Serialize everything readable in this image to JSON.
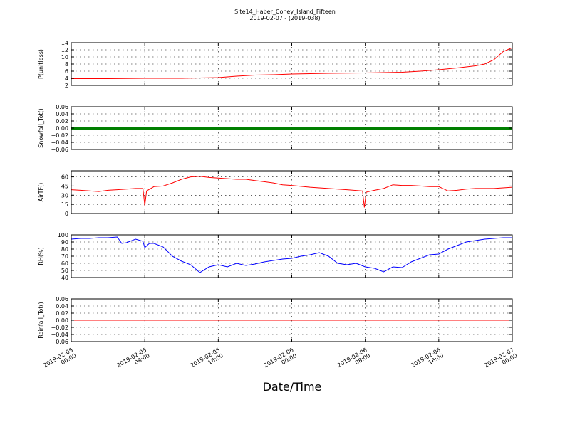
{
  "figure": {
    "title_line1": "Site14_Haber_Coney_Island_Fifteen",
    "title_line2": "2019-02-07 - (2019-038)",
    "xlabel": "Date/Time",
    "x_tick_labels": [
      [
        "2019-02-05",
        "00:00"
      ],
      [
        "2019-02-05",
        "08:00"
      ],
      [
        "2019-02-05",
        "16:00"
      ],
      [
        "2019-02-06",
        "00:00"
      ],
      [
        "2019-02-06",
        "08:00"
      ],
      [
        "2019-02-06",
        "16:00"
      ],
      [
        "2019-02-07",
        "00:00"
      ]
    ]
  },
  "chart_data": [
    {
      "type": "line",
      "ylabel": "P(unitless)",
      "ylim": [
        2,
        14
      ],
      "yticks": [
        2,
        4,
        6,
        8,
        10,
        12,
        14
      ],
      "xlim_hours": [
        0,
        48
      ],
      "grid": true,
      "color": "#ff0000",
      "x": [
        0,
        4,
        8,
        12,
        14,
        16,
        18,
        20,
        22,
        24,
        28,
        32,
        34,
        36,
        38,
        40,
        42,
        44,
        45,
        46,
        47,
        48
      ],
      "values": [
        3.9,
        3.9,
        4.0,
        4.0,
        4.1,
        4.2,
        4.6,
        4.9,
        5.0,
        5.2,
        5.4,
        5.5,
        5.6,
        5.7,
        6.0,
        6.4,
        6.9,
        7.5,
        8.0,
        9.2,
        11.5,
        12.6
      ]
    },
    {
      "type": "line",
      "ylabel": "Snowfall_Tot()",
      "ylim": [
        -0.06,
        0.06
      ],
      "yticks": [
        "0.06",
        "0.04",
        "0.02",
        "0.00",
        "−0.02",
        "−0.04",
        "−0.06"
      ],
      "xlim_hours": [
        0,
        48
      ],
      "grid": true,
      "color": "#007f00",
      "markers": true,
      "x": [
        0,
        48
      ],
      "values": [
        0.0,
        0.0
      ]
    },
    {
      "type": "line",
      "ylabel": "AirTF()",
      "ylim": [
        0,
        70
      ],
      "yticks": [
        0,
        15,
        30,
        45,
        60
      ],
      "xlim_hours": [
        0,
        48
      ],
      "grid": true,
      "color": "#ff0000",
      "x": [
        0,
        1,
        2,
        3,
        4,
        5,
        6,
        7,
        7.8,
        8.0,
        8.2,
        9,
        10,
        11,
        12,
        13,
        14,
        15,
        16,
        17,
        18,
        19,
        20,
        21,
        22,
        23,
        24,
        26,
        28,
        30,
        31.7,
        31.9,
        32.1,
        33,
        34,
        35,
        36,
        37,
        38,
        39,
        40,
        41,
        42,
        43,
        44,
        46,
        48
      ],
      "values": [
        39,
        38,
        37,
        36,
        38,
        39,
        40,
        41,
        41,
        13,
        37,
        44,
        45,
        50,
        56,
        60,
        61,
        59,
        58,
        57,
        56,
        56,
        54,
        52,
        50,
        47,
        46,
        43,
        41,
        39,
        37,
        10,
        35,
        38,
        41,
        47,
        46,
        46,
        45,
        44,
        44,
        37,
        38,
        40,
        41,
        41,
        43
      ]
    },
    {
      "type": "line",
      "ylabel": "RH(%)",
      "ylim": [
        40,
        100
      ],
      "yticks": [
        40,
        50,
        60,
        70,
        80,
        90,
        100
      ],
      "xlim_hours": [
        0,
        48
      ],
      "grid": true,
      "color": "#0000ff",
      "x": [
        0,
        1,
        2,
        3,
        4,
        5,
        5.5,
        6,
        7,
        7.8,
        8,
        8.5,
        9,
        10,
        11,
        12,
        13,
        14,
        15,
        16,
        17,
        18,
        19,
        20,
        21,
        22,
        23,
        24,
        25,
        26,
        27,
        28,
        29,
        30,
        31,
        32,
        33,
        34,
        35,
        36,
        37,
        38,
        39,
        40,
        41,
        42,
        43,
        44,
        45,
        46,
        47,
        48
      ],
      "values": [
        94,
        95,
        95,
        96,
        96,
        97,
        88,
        89,
        94,
        91,
        82,
        88,
        88,
        83,
        70,
        63,
        58,
        47,
        55,
        58,
        55,
        60,
        57,
        59,
        62,
        64,
        66,
        67,
        70,
        72,
        75,
        70,
        60,
        58,
        60,
        55,
        53,
        48,
        55,
        54,
        62,
        67,
        72,
        73,
        80,
        85,
        90,
        92,
        94,
        95,
        96,
        96
      ]
    },
    {
      "type": "line",
      "ylabel": "Rainfall_Tot()",
      "ylim": [
        -0.06,
        0.06
      ],
      "yticks": [
        "0.06",
        "0.04",
        "0.02",
        "0.00",
        "−0.02",
        "−0.04",
        "−0.06"
      ],
      "xlim_hours": [
        0,
        48
      ],
      "grid": true,
      "color": "#ff0000",
      "x": [
        0,
        48
      ],
      "values": [
        0.0,
        0.0
      ]
    }
  ]
}
